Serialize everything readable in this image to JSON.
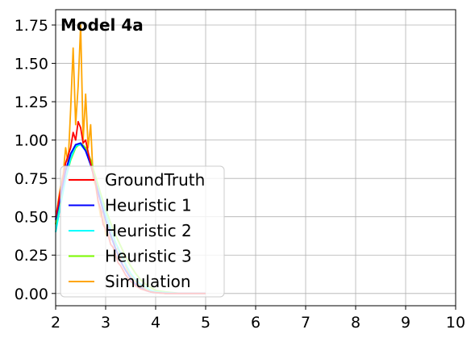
{
  "chart_data": {
    "type": "line",
    "title": "Model 4a",
    "xlabel": "",
    "ylabel": "",
    "xlim": [
      2,
      10
    ],
    "ylim": [
      -0.08,
      1.85
    ],
    "x_ticks": [
      "2",
      "3",
      "4",
      "5",
      "6",
      "7",
      "8",
      "9",
      "10"
    ],
    "y_ticks": [
      "0.00",
      "0.25",
      "0.50",
      "0.75",
      "1.00",
      "1.25",
      "1.50",
      "1.75"
    ],
    "grid": true,
    "legend_position": "lower-left",
    "series": [
      {
        "name": "Simulation",
        "color": "#ffa500",
        "style": "noisy",
        "x": [
          2.0,
          2.05,
          2.1,
          2.15,
          2.2,
          2.25,
          2.3,
          2.35,
          2.4,
          2.45,
          2.5,
          2.55,
          2.6,
          2.65,
          2.7,
          2.75,
          2.8,
          2.85,
          2.9,
          2.95,
          3.0,
          3.05,
          3.1,
          3.15,
          3.2,
          3.25,
          3.3,
          3.35,
          3.4,
          3.45,
          3.5,
          3.6,
          3.7,
          3.8,
          3.9,
          4.0,
          4.2,
          4.5,
          5.0
        ],
        "y": [
          0.45,
          0.6,
          0.7,
          0.78,
          0.95,
          0.85,
          1.2,
          1.6,
          1.1,
          1.35,
          1.75,
          1.0,
          1.3,
          0.95,
          1.1,
          0.75,
          0.7,
          0.6,
          0.5,
          0.55,
          0.38,
          0.45,
          0.35,
          0.4,
          0.28,
          0.3,
          0.22,
          0.25,
          0.18,
          0.14,
          0.12,
          0.08,
          0.05,
          0.03,
          0.02,
          0.01,
          0.005,
          0.0,
          0.0
        ]
      },
      {
        "name": "Heuristic 3",
        "color": "#7cfc00",
        "style": "smooth",
        "x": [
          2.0,
          2.1,
          2.2,
          2.3,
          2.4,
          2.5,
          2.6,
          2.7,
          2.8,
          2.9,
          3.0,
          3.1,
          3.2,
          3.3,
          3.4,
          3.5,
          3.6,
          3.7,
          3.8,
          3.9,
          4.0,
          4.2,
          4.5,
          5.0
        ],
        "y": [
          0.45,
          0.6,
          0.75,
          0.87,
          0.95,
          0.98,
          0.95,
          0.87,
          0.76,
          0.65,
          0.55,
          0.46,
          0.38,
          0.31,
          0.24,
          0.18,
          0.13,
          0.09,
          0.06,
          0.04,
          0.02,
          0.01,
          0.0,
          0.0
        ]
      },
      {
        "name": "Heuristic 2",
        "color": "#00ffff",
        "style": "smooth",
        "x": [
          2.0,
          2.1,
          2.2,
          2.3,
          2.4,
          2.5,
          2.6,
          2.7,
          2.8,
          2.9,
          3.0,
          3.1,
          3.2,
          3.3,
          3.4,
          3.5,
          3.6,
          3.7,
          3.8,
          3.9,
          4.0,
          4.2,
          4.5,
          5.0
        ],
        "y": [
          0.4,
          0.58,
          0.75,
          0.88,
          0.96,
          0.97,
          0.93,
          0.84,
          0.73,
          0.62,
          0.52,
          0.42,
          0.33,
          0.26,
          0.19,
          0.13,
          0.09,
          0.06,
          0.04,
          0.02,
          0.01,
          0.005,
          0.0,
          0.0
        ]
      },
      {
        "name": "Heuristic 1",
        "color": "#0000ff",
        "style": "smooth",
        "x": [
          2.0,
          2.1,
          2.2,
          2.3,
          2.4,
          2.5,
          2.6,
          2.7,
          2.8,
          2.9,
          3.0,
          3.1,
          3.2,
          3.3,
          3.4,
          3.5,
          3.6,
          3.7,
          3.8,
          3.9,
          4.0,
          4.2,
          4.5,
          5.0
        ],
        "y": [
          0.48,
          0.64,
          0.8,
          0.91,
          0.97,
          0.98,
          0.93,
          0.84,
          0.72,
          0.6,
          0.48,
          0.38,
          0.29,
          0.21,
          0.15,
          0.1,
          0.06,
          0.04,
          0.02,
          0.01,
          0.005,
          0.0,
          0.0,
          0.0
        ]
      },
      {
        "name": "GroundTruth",
        "color": "#ff0000",
        "style": "noisy",
        "x": [
          2.0,
          2.05,
          2.1,
          2.15,
          2.2,
          2.25,
          2.3,
          2.35,
          2.4,
          2.45,
          2.5,
          2.55,
          2.6,
          2.65,
          2.7,
          2.75,
          2.8,
          2.85,
          2.9,
          2.95,
          3.0,
          3.05,
          3.1,
          3.15,
          3.2,
          3.25,
          3.3,
          3.35,
          3.4,
          3.45,
          3.5,
          3.6,
          3.7,
          3.8,
          3.9,
          4.0,
          4.2,
          4.5,
          5.0
        ],
        "y": [
          0.5,
          0.58,
          0.68,
          0.76,
          0.85,
          0.9,
          0.95,
          1.05,
          1.0,
          1.12,
          1.08,
          0.98,
          1.0,
          0.92,
          0.85,
          0.78,
          0.72,
          0.6,
          0.55,
          0.45,
          0.42,
          0.38,
          0.32,
          0.3,
          0.25,
          0.2,
          0.18,
          0.15,
          0.12,
          0.1,
          0.08,
          0.05,
          0.03,
          0.02,
          0.01,
          0.005,
          0.0,
          0.0,
          0.0
        ]
      }
    ],
    "legend_order": [
      "GroundTruth",
      "Heuristic 1",
      "Heuristic 2",
      "Heuristic 3",
      "Simulation"
    ]
  }
}
